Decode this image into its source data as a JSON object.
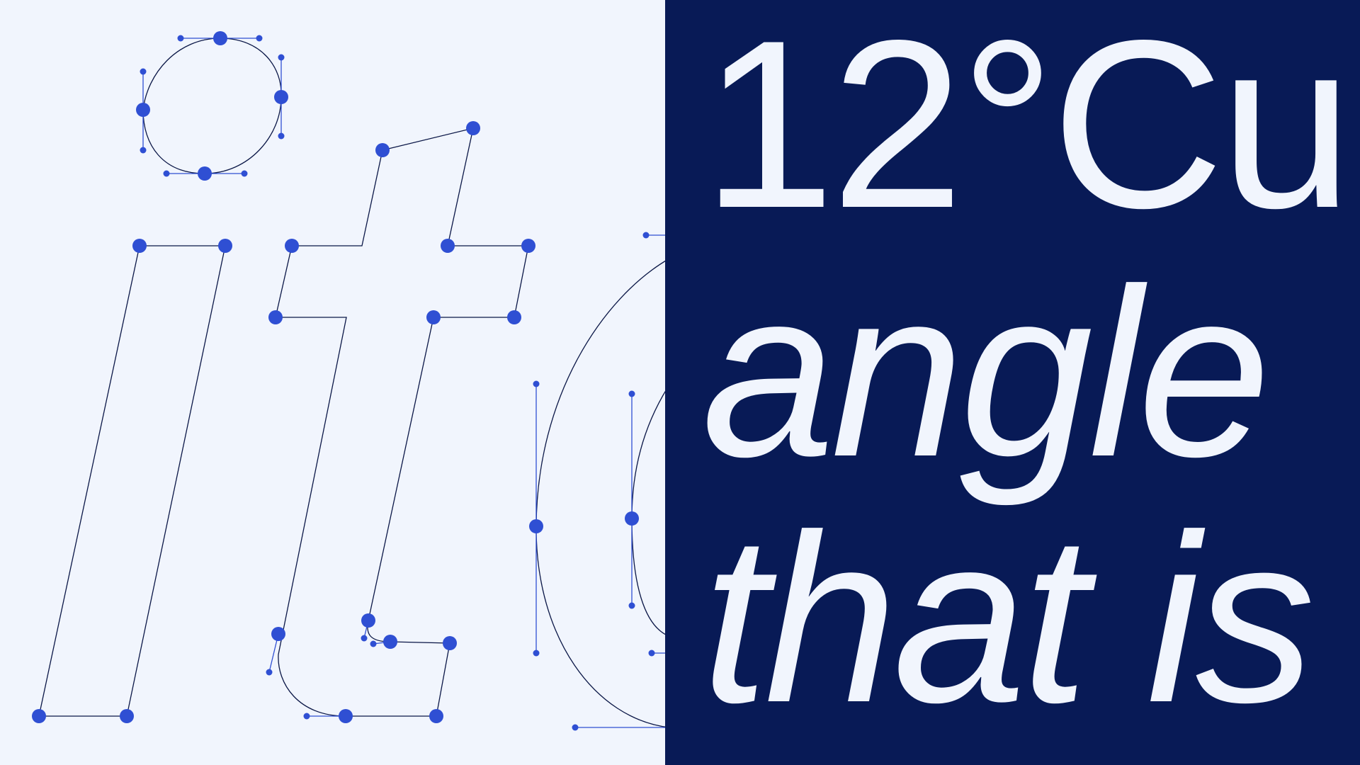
{
  "colors": {
    "background_light": "#f1f5fd",
    "panel_dark": "#081a56",
    "point_blue": "#2f4fd3",
    "outline_stroke": "#0b1747",
    "display_text": "#f1f5fd"
  },
  "specimen": {
    "line_1": "12°Cu",
    "line_2": "angle",
    "line_3": "that is"
  },
  "outline_glyphs": {
    "letters": [
      "o",
      "l",
      "t",
      "o"
    ],
    "node_style": "bezier-points-with-handles"
  }
}
